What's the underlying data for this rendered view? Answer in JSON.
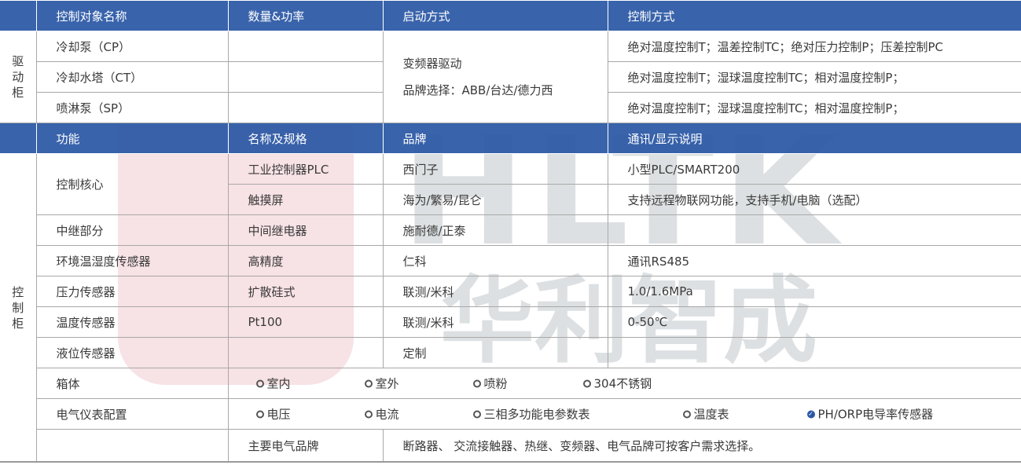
{
  "watermark": {
    "latin": "HLTK",
    "chinese": "华利智成"
  },
  "drive": {
    "side": "驱动柜",
    "headers": [
      "控制对象名称",
      "数量&功率",
      "启动方式",
      "控制方式"
    ],
    "rows": [
      {
        "name": "冷却泵（CP）",
        "control": "绝对温度控制T；温差控制TC；绝对压力控制P；压差控制PC"
      },
      {
        "name": "冷却水塔（CT）",
        "control": "绝对温度控制T；湿球温度控制TC；相对温度控制P；"
      },
      {
        "name": "喷淋泵（SP）",
        "control": "绝对温度控制T；湿球温度控制TC；相对温度控制P；"
      }
    ],
    "start_line1": "变频器驱动",
    "start_line2": "品牌选择：ABB/台达/德力西"
  },
  "control": {
    "side": "控制柜",
    "headers": [
      "功能",
      "名称及规格",
      "品牌",
      "通讯/显示说明"
    ],
    "core": "控制核心",
    "rows": [
      {
        "spec": "工业控制器PLC",
        "brand": "西门子",
        "note": "小型PLC/SMART200"
      },
      {
        "spec": "触摸屏",
        "brand": "海为/繁易/昆仑",
        "note": "支持远程物联网功能，支持手机/电脑（选配）"
      },
      {
        "func": "中继部分",
        "spec": "中间继电器",
        "brand": "施耐德/正泰",
        "note": ""
      },
      {
        "func": "环境温湿度传感器",
        "spec": "高精度",
        "brand": "仁科",
        "note": "通讯RS485"
      },
      {
        "func": "压力传感器",
        "spec": "扩散硅式",
        "brand": "联测/米科",
        "note": "1.0/1.6MPa"
      },
      {
        "func": "温度传感器",
        "spec": "Pt100",
        "brand": "联测/米科",
        "note": "0-50℃"
      },
      {
        "func": "液位传感器",
        "spec": "",
        "brand": "定制",
        "note": ""
      }
    ],
    "box": {
      "label": "箱体",
      "options": [
        {
          "label": "室内",
          "checked": false
        },
        {
          "label": "室外",
          "checked": false
        },
        {
          "label": "喷粉",
          "checked": false
        },
        {
          "label": "304不锈钢",
          "checked": false
        }
      ]
    },
    "meters": {
      "label": "电气仪表配置",
      "options": [
        {
          "label": "电压",
          "checked": false
        },
        {
          "label": "电流",
          "checked": false
        },
        {
          "label": "三相多功能电参数表",
          "checked": false
        },
        {
          "label": "温度表",
          "checked": false
        },
        {
          "label": "PH/ORP电导率传感器",
          "checked": true
        }
      ]
    }
  },
  "brands": {
    "label": "主要电气品牌",
    "text": "断路器、 交流接触器、热继、变频器、电气品牌可按客户需求选择。"
  },
  "colors": {
    "header": "#2a57a5",
    "text": "#3a3a3a"
  }
}
